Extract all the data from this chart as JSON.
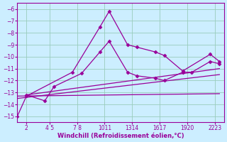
{
  "xlabel": "Windchill (Refroidissement éolien,°C)",
  "bg_color": "#cceeff",
  "grid_color": "#99ccbb",
  "line_color": "#990099",
  "xlim": [
    1,
    23.5
  ],
  "ylim": [
    -15.5,
    -5.5
  ],
  "yticks": [
    -6,
    -7,
    -8,
    -9,
    -10,
    -11,
    -12,
    -13,
    -14,
    -15
  ],
  "xtick_positions": [
    2,
    4.5,
    7.5,
    10.5,
    13.5,
    16.5,
    19.5,
    22.5
  ],
  "xtick_labels": [
    "2",
    "4 5",
    "7 8",
    "1011",
    "1314",
    "1617",
    "1920",
    "2223"
  ],
  "series": [
    {
      "x": [
        1,
        2,
        7,
        10,
        11,
        13,
        14,
        16,
        17,
        19,
        22,
        23
      ],
      "y": [
        -15.0,
        -13.3,
        -11.3,
        -7.5,
        -6.2,
        -9.0,
        -9.2,
        -9.6,
        -9.9,
        -11.2,
        -9.8,
        -10.4
      ],
      "marker": true
    },
    {
      "x": [
        2,
        4,
        5,
        8,
        10,
        11,
        13,
        14,
        16,
        17,
        19,
        20,
        22,
        23
      ],
      "y": [
        -13.2,
        -13.7,
        -12.5,
        -11.4,
        -9.6,
        -8.7,
        -11.3,
        -11.6,
        -11.8,
        -12.0,
        -11.3,
        -11.3,
        -10.4,
        -10.6
      ],
      "marker": true
    },
    {
      "x": [
        1,
        23
      ],
      "y": [
        -13.3,
        -13.1
      ],
      "marker": false
    },
    {
      "x": [
        1,
        23
      ],
      "y": [
        -13.5,
        -11.5
      ],
      "marker": false
    },
    {
      "x": [
        2,
        23
      ],
      "y": [
        -13.2,
        -11.0
      ],
      "marker": false
    }
  ]
}
